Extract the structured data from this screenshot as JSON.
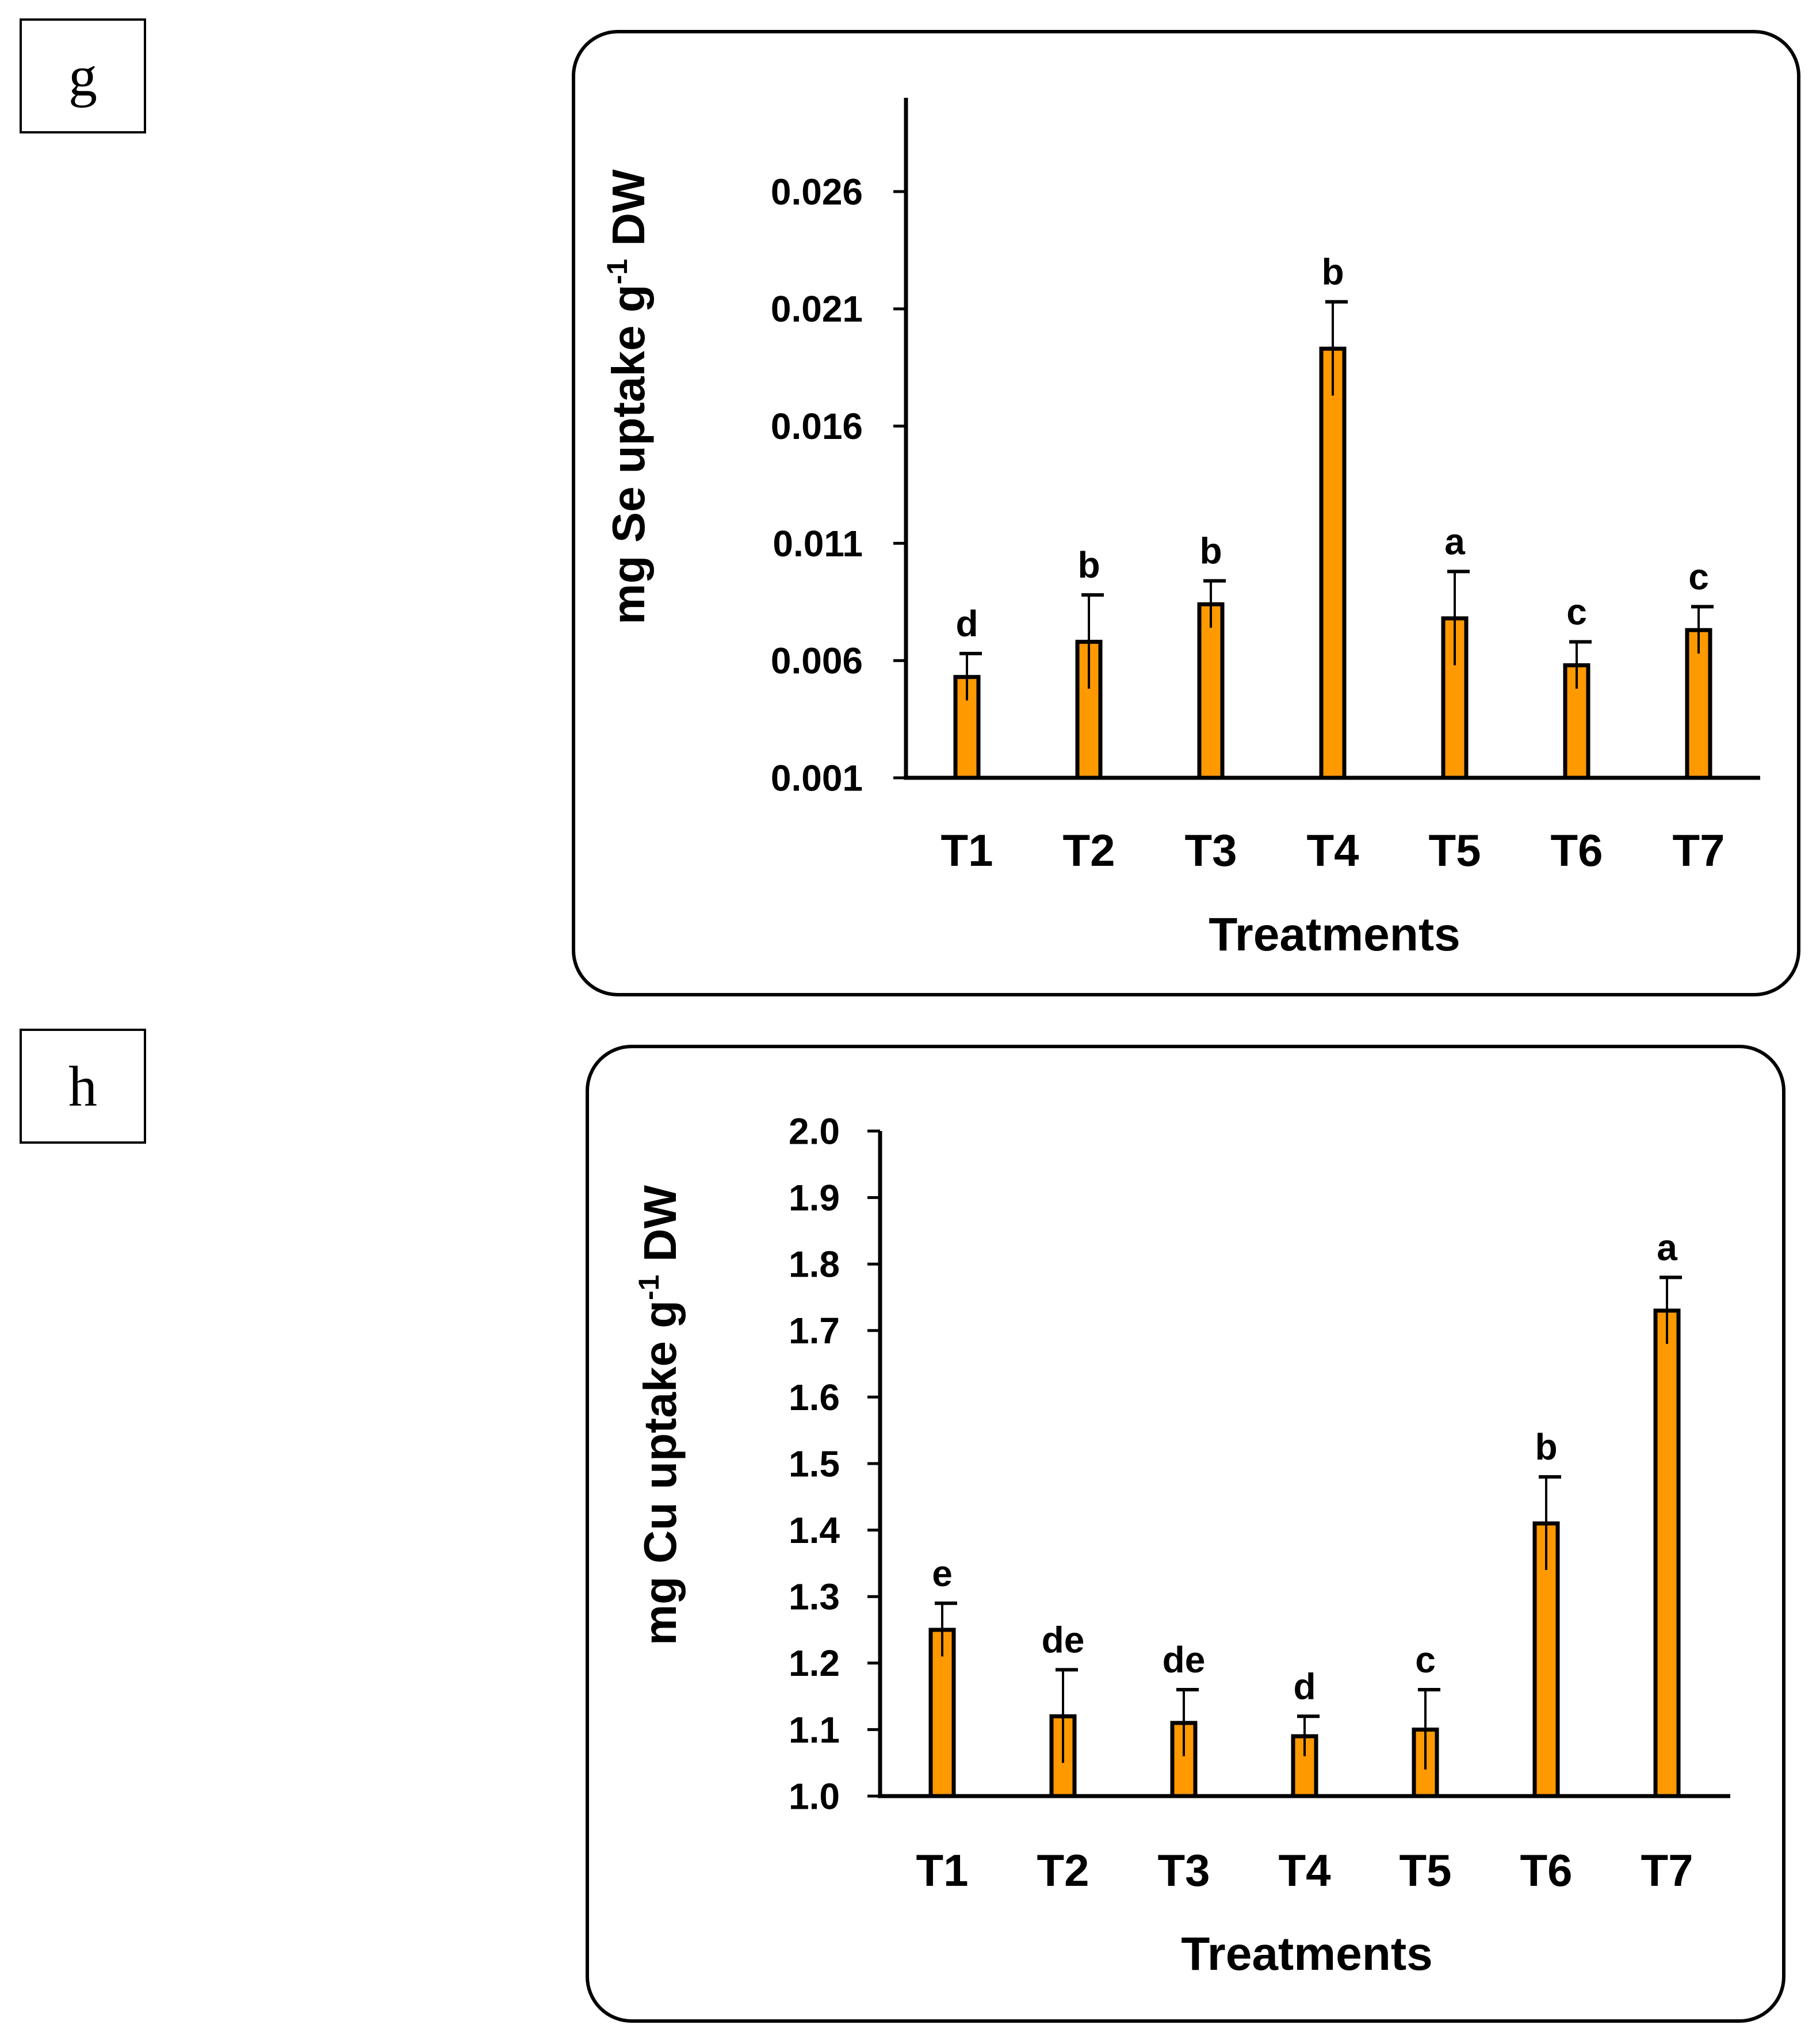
{
  "panels": {
    "g": {
      "label": "g"
    },
    "h": {
      "label": "h"
    }
  },
  "colors": {
    "bar": "#FF9900",
    "stroke": "#000000"
  },
  "chart_data": [
    {
      "id": "g",
      "type": "bar",
      "ylabel_prefix": "mg Se uptake g",
      "ylabel_sup": "-1",
      "ylabel_suffix": " DW",
      "xlabel": "Treatments",
      "categories": [
        "T1",
        "T2",
        "T3",
        "T4",
        "T5",
        "T6",
        "T7"
      ],
      "values": [
        0.0053,
        0.0068,
        0.0084,
        0.0193,
        0.0078,
        0.0058,
        0.0073
      ],
      "errors": [
        0.001,
        0.002,
        0.001,
        0.002,
        0.002,
        0.001,
        0.001
      ],
      "significance": [
        "d",
        "b",
        "b",
        "b",
        "a",
        "c",
        "c"
      ],
      "ylim": [
        0.001,
        0.03
      ],
      "yticks": [
        0.001,
        0.006,
        0.011,
        0.016,
        0.021,
        0.026
      ],
      "ytick_labels": [
        "0.001",
        "0.006",
        "0.011",
        "0.016",
        "0.021",
        "0.026"
      ],
      "grid": false
    },
    {
      "id": "h",
      "type": "bar",
      "ylabel_prefix": "mg Cu uptake g",
      "ylabel_sup": "-1",
      "ylabel_suffix": " DW",
      "xlabel": "Treatments",
      "categories": [
        "T1",
        "T2",
        "T3",
        "T4",
        "T5",
        "T6",
        "T7"
      ],
      "values": [
        1.25,
        1.12,
        1.11,
        1.09,
        1.1,
        1.41,
        1.73
      ],
      "errors": [
        0.04,
        0.07,
        0.05,
        0.03,
        0.06,
        0.07,
        0.05
      ],
      "significance": [
        "e",
        "de",
        "de",
        "d",
        "c",
        "b",
        "a"
      ],
      "ylim": [
        1.0,
        2.0
      ],
      "yticks": [
        1.0,
        1.1,
        1.2,
        1.3,
        1.4,
        1.5,
        1.6,
        1.7,
        1.8,
        1.9,
        2.0
      ],
      "ytick_labels": [
        "1.0",
        "1.1",
        "1.2",
        "1.3",
        "1.4",
        "1.5",
        "1.6",
        "1.7",
        "1.8",
        "1.9",
        "2.0"
      ],
      "grid": false
    }
  ]
}
